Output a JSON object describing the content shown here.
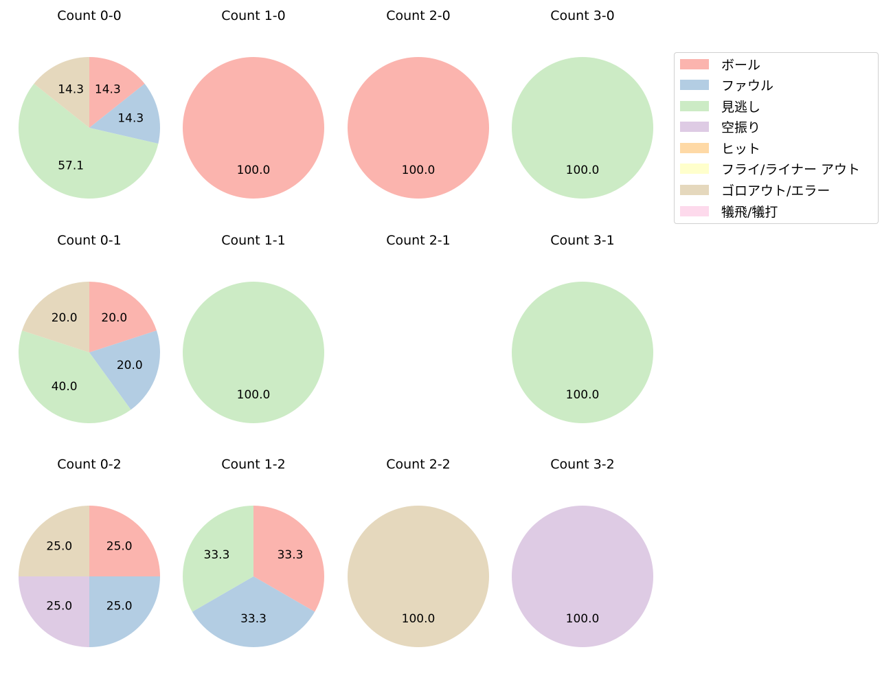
{
  "colors": {
    "ボール": "#fbb4ae",
    "ファウル": "#b3cde3",
    "見逃し": "#ccebc5",
    "空振り": "#decbe4",
    "ヒット": "#fed9a6",
    "フライ/ライナー アウト": "#ffffcc",
    "ゴロアウト/エラー": "#e5d8bd",
    "犠飛/犠打": "#fddaec"
  },
  "legend": {
    "items": [
      {
        "label": "ボール",
        "color": "#fbb4ae"
      },
      {
        "label": "ファウル",
        "color": "#b3cde3"
      },
      {
        "label": "見逃し",
        "color": "#ccebc5"
      },
      {
        "label": "空振り",
        "color": "#decbe4"
      },
      {
        "label": "ヒット",
        "color": "#fed9a6"
      },
      {
        "label": "フライ/ライナー アウト",
        "color": "#ffffcc"
      },
      {
        "label": "ゴロアウト/エラー",
        "color": "#e5d8bd"
      },
      {
        "label": "犠飛/犠打",
        "color": "#fddaec"
      }
    ]
  },
  "chart_data": [
    {
      "type": "pie",
      "title": "Count 0-0",
      "slices": [
        {
          "category": "ボール",
          "value": 14.3
        },
        {
          "category": "ファウル",
          "value": 14.3
        },
        {
          "category": "見逃し",
          "value": 57.1
        },
        {
          "category": "ゴロアウト/エラー",
          "value": 14.3
        }
      ]
    },
    {
      "type": "pie",
      "title": "Count 1-0",
      "slices": [
        {
          "category": "ボール",
          "value": 100.0
        }
      ]
    },
    {
      "type": "pie",
      "title": "Count 2-0",
      "slices": [
        {
          "category": "ボール",
          "value": 100.0
        }
      ]
    },
    {
      "type": "pie",
      "title": "Count 3-0",
      "slices": [
        {
          "category": "見逃し",
          "value": 100.0
        }
      ]
    },
    {
      "type": "pie",
      "title": "Count 0-1",
      "slices": [
        {
          "category": "ボール",
          "value": 20.0
        },
        {
          "category": "ファウル",
          "value": 20.0
        },
        {
          "category": "見逃し",
          "value": 40.0
        },
        {
          "category": "ゴロアウト/エラー",
          "value": 20.0
        }
      ]
    },
    {
      "type": "pie",
      "title": "Count 1-1",
      "slices": [
        {
          "category": "見逃し",
          "value": 100.0
        }
      ]
    },
    {
      "type": "pie",
      "title": "Count 2-1",
      "slices": []
    },
    {
      "type": "pie",
      "title": "Count 3-1",
      "slices": [
        {
          "category": "見逃し",
          "value": 100.0
        }
      ]
    },
    {
      "type": "pie",
      "title": "Count 0-2",
      "slices": [
        {
          "category": "ボール",
          "value": 25.0
        },
        {
          "category": "ファウル",
          "value": 25.0
        },
        {
          "category": "空振り",
          "value": 25.0
        },
        {
          "category": "ゴロアウト/エラー",
          "value": 25.0
        }
      ]
    },
    {
      "type": "pie",
      "title": "Count 1-2",
      "slices": [
        {
          "category": "ボール",
          "value": 33.3
        },
        {
          "category": "ファウル",
          "value": 33.3
        },
        {
          "category": "見逃し",
          "value": 33.3
        }
      ]
    },
    {
      "type": "pie",
      "title": "Count 2-2",
      "slices": [
        {
          "category": "ゴロアウト/エラー",
          "value": 100.0
        }
      ]
    },
    {
      "type": "pie",
      "title": "Count 3-2",
      "slices": [
        {
          "category": "空振り",
          "value": 100.0
        }
      ]
    }
  ]
}
